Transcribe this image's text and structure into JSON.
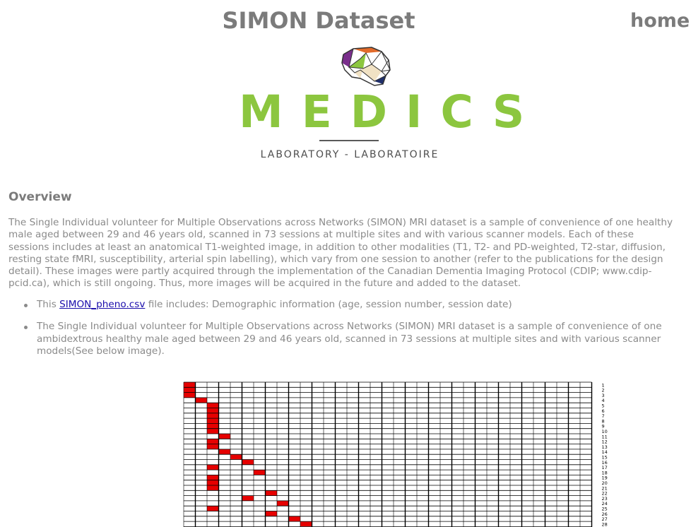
{
  "header": {
    "title": "SIMON Dataset",
    "home_link": "home"
  },
  "logo": {
    "name": "MEDICS",
    "subtitle": "LABORATORY - LABORATOIRE",
    "colors": {
      "green": "#8cc63f",
      "purple": "#7a2e8c",
      "orange": "#e26b2a",
      "navy": "#1f2f6b",
      "tan": "#f1e2c4"
    }
  },
  "overview": {
    "heading": "Overview",
    "paragraph": "The Single Individual volunteer for Multiple Observations across Networks (SIMON) MRI dataset is a sample of convenience of one healthy male aged between 29 and 46 years old, scanned in 73 sessions at multiple sites and with various scanner models. Each of these sessions includes at least an anatomical T1-weighted image, in addition to other modalities (T1, T2- and PD-weighted, T2-star, diffusion, resting state fMRI, susceptibility, arterial spin labelling), which vary from one session to another (refer to the publications for the design detail). These images were partly acquired through the implementation of the Canadian Dementia Imaging Protocol (CDIP; www.cdip-pcid.ca), which is still ongoing. Thus, more images will be acquired in the future and added to the dataset."
  },
  "bullets": {
    "item1_prefix": "This ",
    "item1_link": "SIMON_pheno.csv",
    "item1_suffix": " file includes: Demographic information (age, session number, session date)",
    "item2": "The Single Individual volunteer for Multiple Observations across Networks (SIMON) MRI dataset is a sample of convenience of one ambidextrous healthy male aged between 29 and 46 years old, scanned in 73 sessions at multiple sites and with various scanner models(See below image)."
  },
  "grid": {
    "rows": [
      "1",
      "2",
      "3",
      "4",
      "5",
      "6",
      "7",
      "8",
      "9",
      "10",
      "11",
      "12",
      "13",
      "14",
      "15",
      "16",
      "17",
      "18",
      "19",
      "20",
      "21",
      "22",
      "23",
      "24",
      "25",
      "26",
      "27",
      "28"
    ],
    "cell_color": "#e60000",
    "filled": [
      [
        1,
        0
      ],
      [
        2,
        0
      ],
      [
        3,
        0
      ],
      [
        4,
        1
      ],
      [
        5,
        2
      ],
      [
        6,
        2
      ],
      [
        7,
        2
      ],
      [
        8,
        2
      ],
      [
        9,
        2
      ],
      [
        10,
        2
      ],
      [
        11,
        3
      ],
      [
        12,
        2
      ],
      [
        13,
        2
      ],
      [
        14,
        3
      ],
      [
        15,
        4
      ],
      [
        16,
        5
      ],
      [
        17,
        2
      ],
      [
        18,
        6
      ],
      [
        19,
        2
      ],
      [
        20,
        2
      ],
      [
        21,
        2
      ],
      [
        22,
        7
      ],
      [
        23,
        5
      ],
      [
        24,
        8
      ],
      [
        25,
        2
      ],
      [
        26,
        7
      ],
      [
        27,
        9
      ],
      [
        28,
        10
      ]
    ]
  }
}
